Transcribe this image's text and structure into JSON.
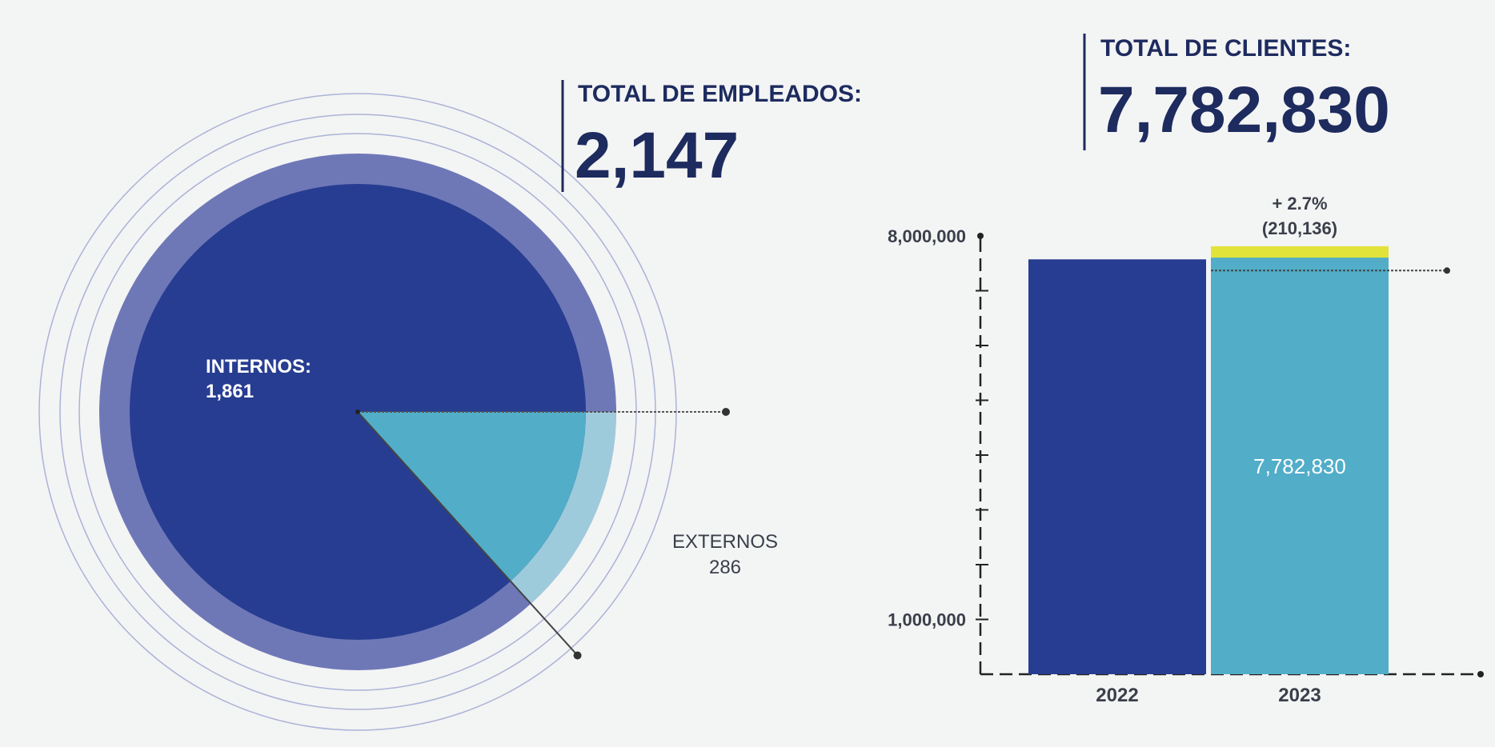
{
  "colors": {
    "navy": "#273d91",
    "lavender": "#6f78b7",
    "teal": "#52adc8",
    "teal_light": "#9ecbdc",
    "yellow": "#e2e33a",
    "heading": "#1c2a5c",
    "background": "#f3f4f4"
  },
  "chart_data": [
    {
      "type": "pie",
      "title": "TOTAL DE EMPLEADOS:",
      "total_label": "2,147",
      "total": 2147,
      "slices": [
        {
          "name": "INTERNOS:",
          "value": 1861,
          "value_label": "1,861"
        },
        {
          "name": "EXTERNOS",
          "value": 286,
          "value_label": "286"
        }
      ]
    },
    {
      "type": "bar",
      "title": "TOTAL DE CLIENTES:",
      "total_label": "7,782,830",
      "categories": [
        "2022",
        "2023"
      ],
      "values": [
        7572694,
        7782830
      ],
      "bar_label": "7,782,830",
      "increase_label": "+ 2.7%",
      "increase_value_label": "(210,136)",
      "increase_value": 210136,
      "y_tick_labels": [
        "8,000,000",
        "1,000,000"
      ],
      "y_label_values": [
        8000000,
        1000000
      ],
      "ylim": [
        0,
        8000000
      ]
    }
  ]
}
